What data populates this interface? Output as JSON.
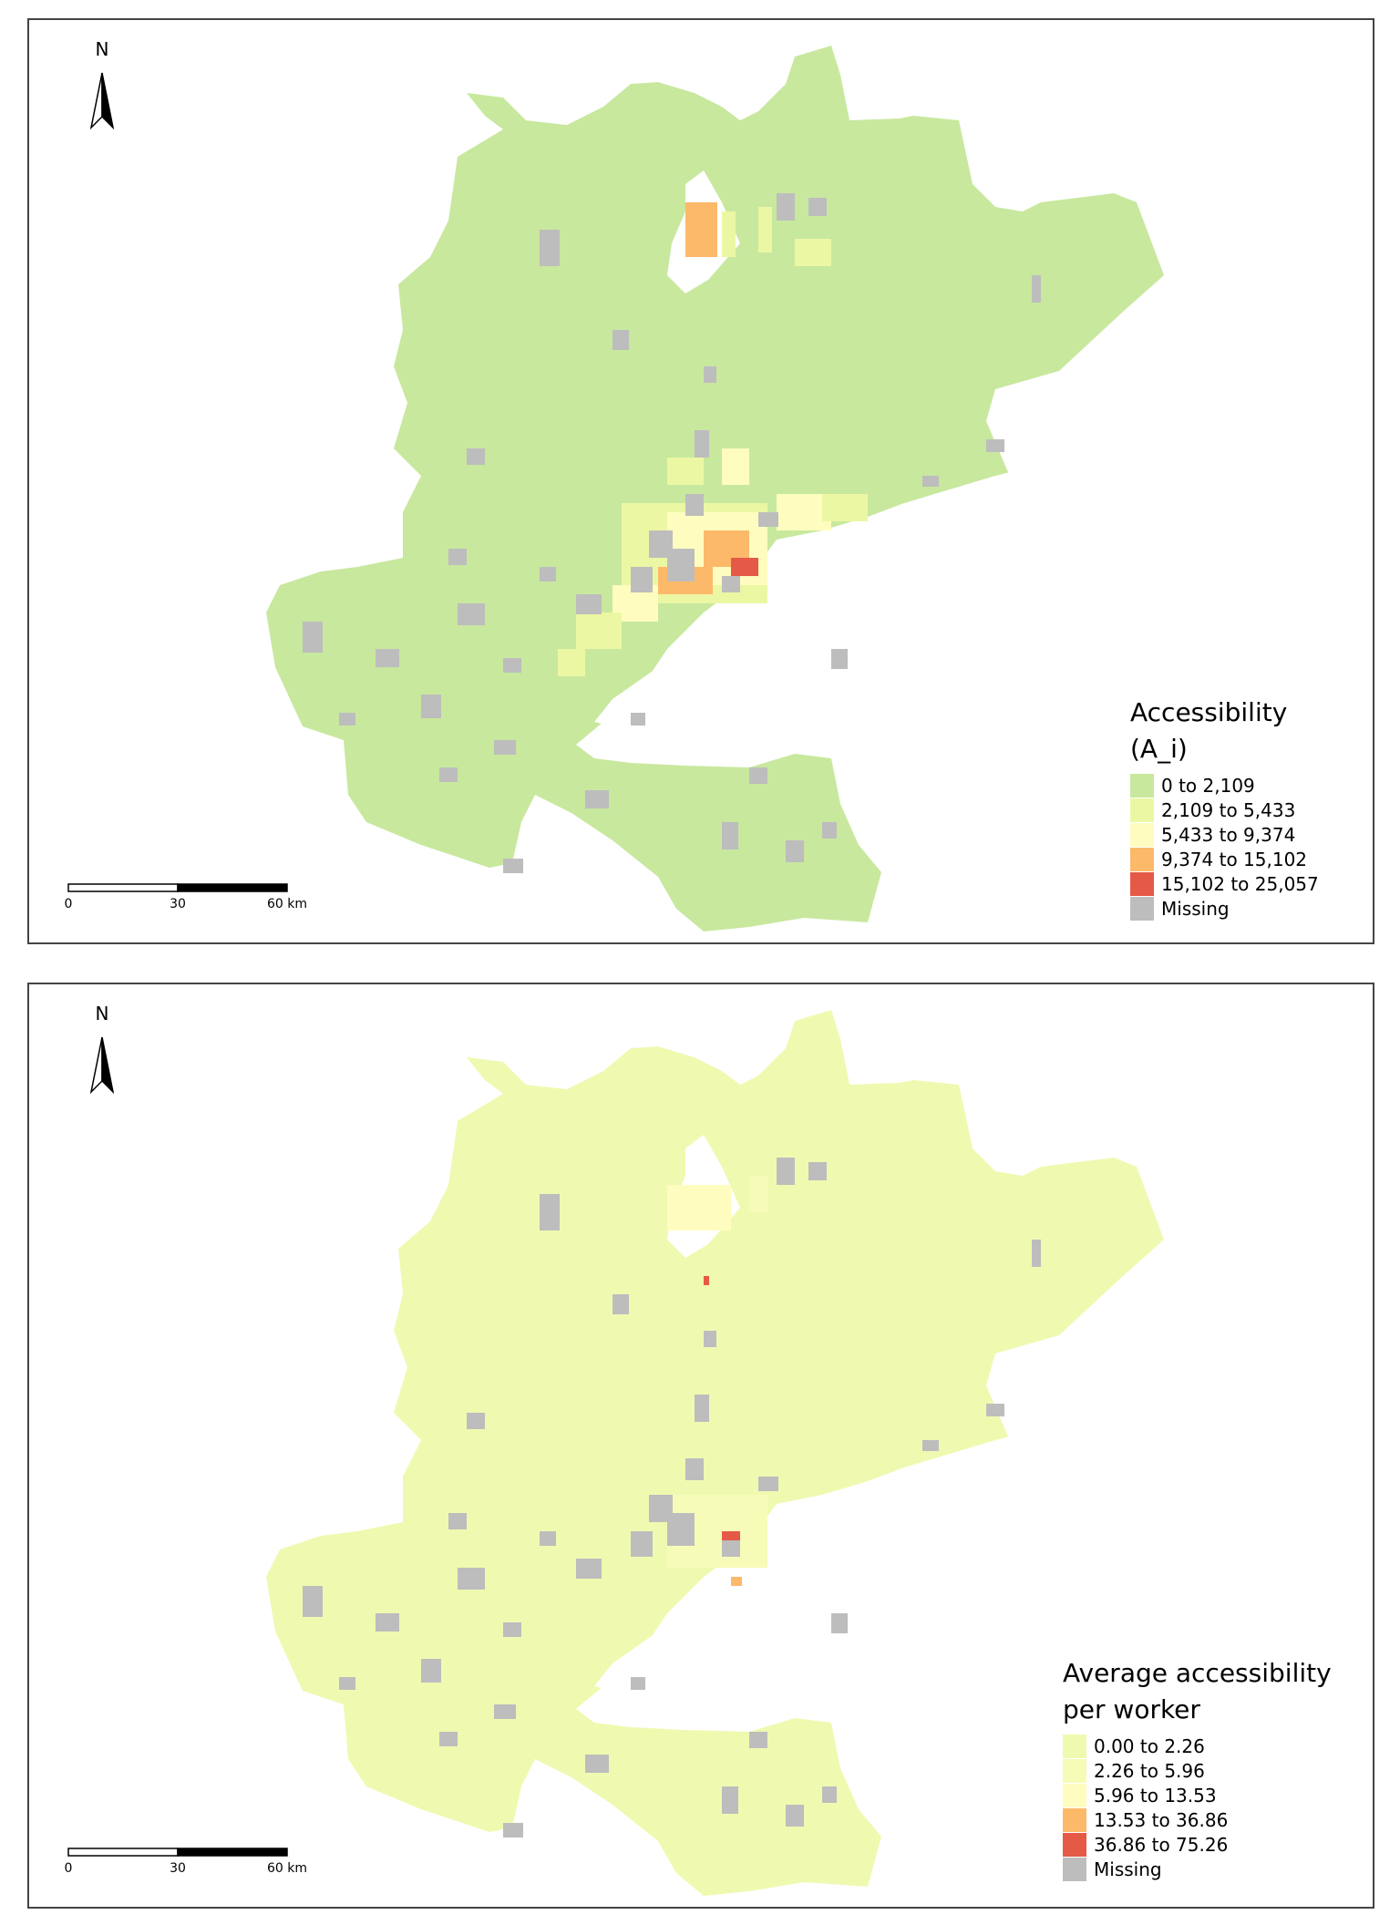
{
  "maps": [
    {
      "north_label": "N",
      "legend": {
        "title_lines": [
          "Accessibility",
          "(A_i)"
        ],
        "classes": [
          {
            "label": "0 to 2,109",
            "color": "#c8e89e"
          },
          {
            "label": "2,109 to 5,433",
            "color": "#ecf7a4"
          },
          {
            "label": "5,433 to 9,374",
            "color": "#fefdbf"
          },
          {
            "label": "9,374 to 15,102",
            "color": "#fdb96a"
          },
          {
            "label": "15,102 to 25,057",
            "color": "#e55a47"
          },
          {
            "label": "Missing",
            "color": "#bdbdbd"
          }
        ]
      },
      "scale_bar": {
        "ticks": [
          "0",
          "30",
          "60 km"
        ]
      },
      "base_fill": "#c8e89e"
    },
    {
      "north_label": "N",
      "legend": {
        "title_lines": [
          "Average accessibility",
          "per worker"
        ],
        "classes": [
          {
            "label": "0.00 to 2.26",
            "color": "#f0f9b0"
          },
          {
            "label": "2.26 to 5.96",
            "color": "#f7fbb8"
          },
          {
            "label": "5.96 to 13.53",
            "color": "#fefdbf"
          },
          {
            "label": "13.53 to 36.86",
            "color": "#fdb96a"
          },
          {
            "label": "36.86 to 75.26",
            "color": "#e55a47"
          },
          {
            "label": "Missing",
            "color": "#bdbdbd"
          }
        ]
      },
      "scale_bar": {
        "ticks": [
          "0",
          "30",
          "60 km"
        ]
      },
      "base_fill": "#f0f9b0"
    }
  ]
}
